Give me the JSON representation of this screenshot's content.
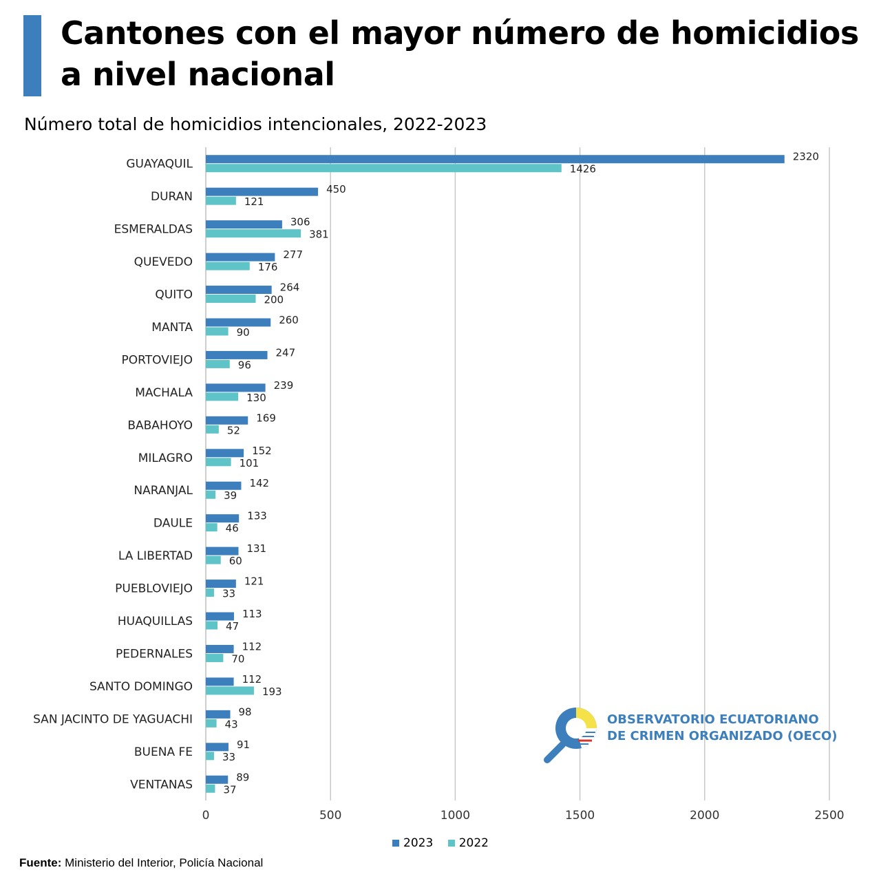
{
  "header": {
    "title": "Cantones con el mayor número de homicidios a nivel nacional",
    "subtitle": "Número total de homicidios intencionales, 2022-2023"
  },
  "colors": {
    "accent": "#3d7fbc",
    "series_2023": "#3d7fbc",
    "series_2022": "#5ec4c8"
  },
  "chart_data": {
    "type": "bar",
    "orientation": "horizontal",
    "categories": [
      "GUAYAQUIL",
      "DURAN",
      "ESMERALDAS",
      "QUEVEDO",
      "QUITO",
      "MANTA",
      "PORTOVIEJO",
      "MACHALA",
      "BABAHOYO",
      "MILAGRO",
      "NARANJAL",
      "DAULE",
      "LA LIBERTAD",
      "PUEBLOVIEJO",
      "HUAQUILLAS",
      "PEDERNALES",
      "SANTO DOMINGO",
      "SAN JACINTO DE YAGUACHI",
      "BUENA FE",
      "VENTANAS"
    ],
    "series": [
      {
        "name": "2023",
        "color": "#3d7fbc",
        "values": [
          2320,
          450,
          306,
          277,
          264,
          260,
          247,
          239,
          169,
          152,
          142,
          133,
          131,
          121,
          113,
          112,
          112,
          98,
          91,
          89
        ]
      },
      {
        "name": "2022",
        "color": "#5ec4c8",
        "values": [
          1426,
          121,
          381,
          176,
          200,
          90,
          96,
          130,
          52,
          101,
          39,
          46,
          60,
          33,
          47,
          70,
          193,
          43,
          33,
          37
        ]
      }
    ],
    "xlim": [
      0,
      2500
    ],
    "ticks": [
      "0",
      "500",
      "1000",
      "1500",
      "2000",
      "2500"
    ],
    "grid": true,
    "legend_placement": "bottom"
  },
  "legend": {
    "items": [
      {
        "label": "2023"
      },
      {
        "label": "2022"
      }
    ]
  },
  "logo": {
    "line1": "OBSERVATORIO ECUATORIANO",
    "line2": "DE CRIMEN ORGANIZADO (OECO)"
  },
  "source": {
    "label": "Fuente:",
    "text": "Ministerio del Interior, Policía Nacional"
  }
}
